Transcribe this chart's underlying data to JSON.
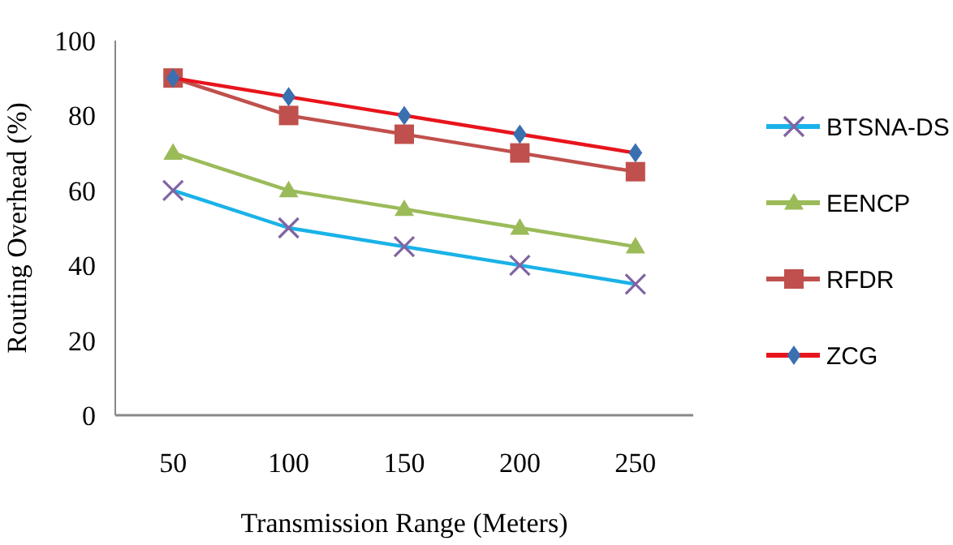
{
  "chart_data": {
    "type": "line",
    "xlabel": "Transmission Range (Meters)",
    "ylabel": "Routing Overhead (%)",
    "categories": [
      "50",
      "100",
      "150",
      "200",
      "250"
    ],
    "ylim": [
      0,
      100
    ],
    "yticks": [
      0,
      20,
      40,
      60,
      80,
      100
    ],
    "grid": false,
    "legend": "right",
    "series": [
      {
        "name": "BTSNA-DS",
        "color": "#1ab2e8",
        "marker": "cross",
        "values": [
          60,
          50,
          45,
          40,
          35
        ]
      },
      {
        "name": "EENCP",
        "color": "#9bbb59",
        "marker": "triangle",
        "values": [
          70,
          60,
          55,
          50,
          45
        ]
      },
      {
        "name": "RFDR",
        "color": "#c0504d",
        "marker": "square",
        "values": [
          90,
          80,
          75,
          70,
          65
        ]
      },
      {
        "name": "ZCG",
        "color": "#e8141c",
        "marker": "diamond",
        "values": [
          90,
          85,
          80,
          75,
          70
        ]
      }
    ]
  }
}
